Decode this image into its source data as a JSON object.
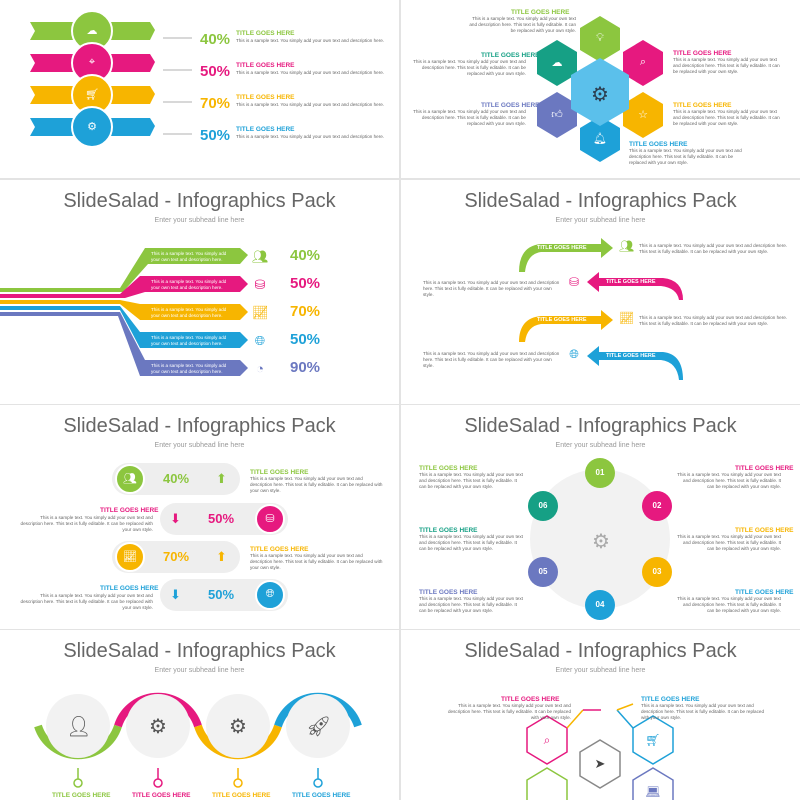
{
  "deck": {
    "slide_title": "SlideSalad - Infographics Pack",
    "subhead": "Enter your subhead line here",
    "item_title": "TITLE GOES HERE",
    "body_long": "This is a sample text. You simply add your own text and description here. This text is fully editable. It can be replaced with your own style.",
    "body_short": "This is a sample text. You simply add your own text and description here."
  },
  "colors": {
    "green": "#8cc63f",
    "pink": "#e6197f",
    "yellow": "#f7b500",
    "blue": "#1ea1d8",
    "purple": "#6b78c0",
    "teal": "#16a085"
  },
  "slide1": {
    "percents": [
      "40%",
      "50%",
      "70%",
      "50%"
    ],
    "icons": [
      "upload-cloud-icon",
      "location-pin-icon",
      "cart-icon",
      "gear-icon"
    ]
  },
  "slide2": {
    "icons": [
      "lightbulb-icon",
      "search-icon",
      "star-icon",
      "bell-icon",
      "thumbs-up-icon",
      "cloud-icon",
      "gear-icon"
    ]
  },
  "slide3": {
    "percents": [
      "40%",
      "50%",
      "70%",
      "50%",
      "90%"
    ],
    "icons": [
      "people-icon",
      "database-icon",
      "chart-icon",
      "globe-icon",
      "pie-icon"
    ]
  },
  "slide5": {
    "percents": [
      "40%",
      "50%",
      "70%",
      "50%"
    ]
  },
  "slide6": {
    "numbers": [
      "01",
      "02",
      "03",
      "04",
      "05",
      "06"
    ]
  },
  "slide7": {
    "icons": [
      "person-chart-icon",
      "head-gears-icon",
      "gears-icon",
      "rocket-screen-icon"
    ]
  },
  "slide8": {
    "icons": [
      "search-icon",
      "cart-icon",
      "send-icon",
      "laptop-icon"
    ]
  }
}
